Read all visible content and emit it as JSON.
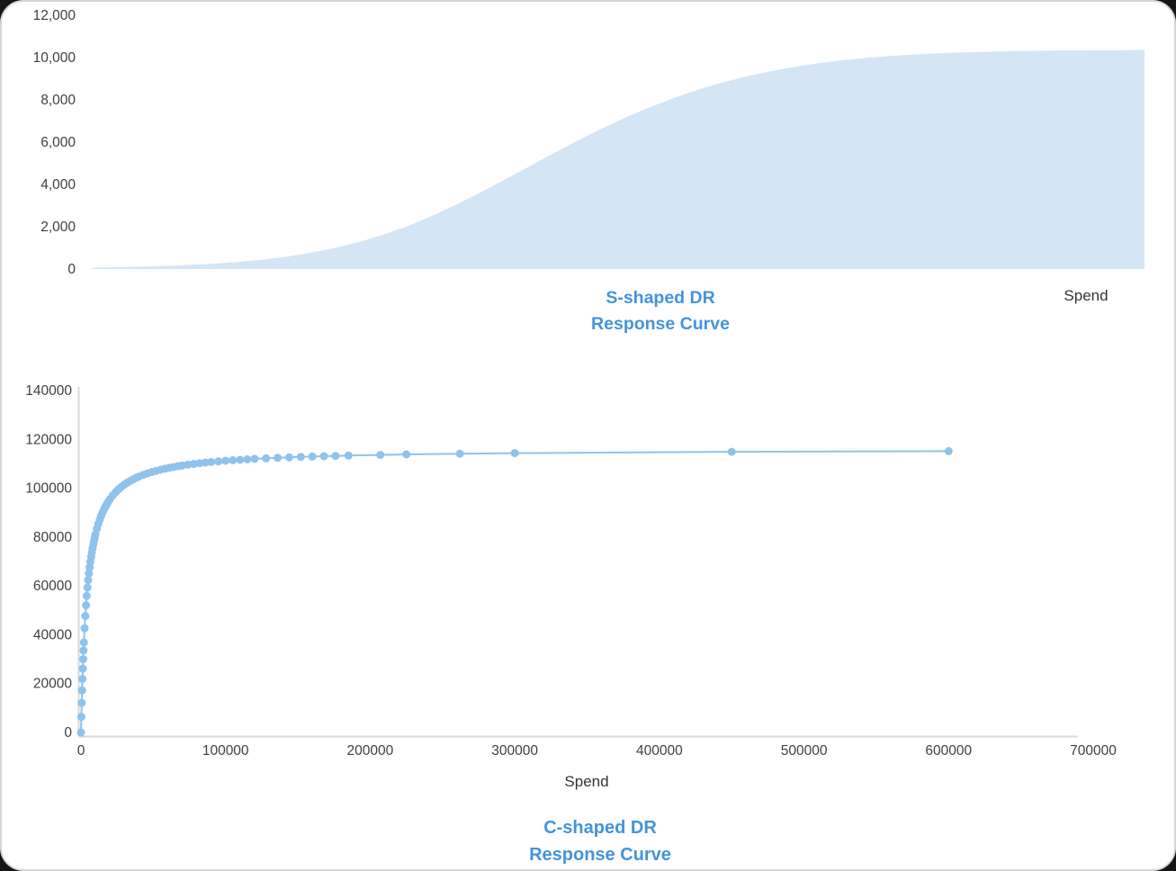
{
  "colors": {
    "area_fill": "#D4E6F5",
    "marker": "#8DC3EC",
    "line": "#8DC3EC",
    "axis": "#D9D9D9",
    "tick_text": "#3F3F3F",
    "title_blue": "#4493DC"
  },
  "chart_data": [
    {
      "id": "s_shaped",
      "type": "area",
      "title_lines": [
        "S-shaped DR",
        "Response Curve"
      ],
      "xlabel": "Spend",
      "ylabel": "",
      "grid": false,
      "legend": "none",
      "xlim": [
        0,
        1
      ],
      "ylim": [
        0,
        12000
      ],
      "x_tick_labels_visible": false,
      "y_tick_values": [
        0,
        2000,
        4000,
        6000,
        8000,
        10000,
        12000
      ],
      "y_tick_labels": [
        "0",
        "2,000",
        "4,000",
        "6,000",
        "8,000",
        "10,000",
        "12,000"
      ],
      "x": [
        0,
        0.04,
        0.08,
        0.12,
        0.16,
        0.2,
        0.24,
        0.28,
        0.32,
        0.36,
        0.4,
        0.44,
        0.48,
        0.52,
        0.56,
        0.6,
        0.64,
        0.68,
        0.72,
        0.76,
        0.8,
        0.84,
        0.88,
        0.92,
        0.96,
        1.0
      ],
      "y": [
        60,
        100,
        160,
        260,
        420,
        680,
        1080,
        1650,
        2420,
        3380,
        4430,
        5520,
        6550,
        7460,
        8230,
        8850,
        9320,
        9670,
        9920,
        10090,
        10200,
        10270,
        10310,
        10335,
        10350,
        10360
      ]
    },
    {
      "id": "c_shaped",
      "type": "scatter",
      "title_lines": [
        "C-shaped DR",
        "Response Curve"
      ],
      "xlabel": "Spend",
      "ylabel": "",
      "grid": false,
      "legend": "none",
      "xlim": [
        0,
        700000
      ],
      "ylim": [
        0,
        140000
      ],
      "x_tick_values": [
        0,
        100000,
        200000,
        300000,
        400000,
        500000,
        600000,
        700000
      ],
      "x_tick_labels": [
        "0",
        "100000",
        "200000",
        "300000",
        "400000",
        "500000",
        "600000",
        "700000"
      ],
      "y_tick_values": [
        0,
        20000,
        40000,
        60000,
        80000,
        100000,
        120000,
        140000
      ],
      "y_tick_labels": [
        "0",
        "20000",
        "40000",
        "60000",
        "80000",
        "100000",
        "120000",
        "140000"
      ],
      "x": [
        0,
        250,
        500,
        750,
        1000,
        1250,
        1500,
        1750,
        2000,
        2500,
        3000,
        3500,
        4000,
        4500,
        5000,
        5500,
        6000,
        6500,
        7000,
        7500,
        8000,
        8500,
        9000,
        9500,
        10000,
        11000,
        12000,
        13000,
        14000,
        15000,
        16000,
        17000,
        18000,
        19000,
        20000,
        22000,
        24000,
        26000,
        28000,
        30000,
        32000,
        34000,
        36000,
        38000,
        40000,
        43000,
        46000,
        49000,
        52000,
        55000,
        58000,
        61000,
        64000,
        67000,
        70000,
        74000,
        78000,
        82000,
        86000,
        90000,
        95000,
        100000,
        105000,
        110000,
        115000,
        120000,
        128000,
        136000,
        144000,
        152000,
        160000,
        168000,
        176000,
        185000,
        207000,
        225000,
        262000,
        300000,
        450000,
        600000
      ],
      "y": [
        0,
        6374,
        12083,
        17228,
        21887,
        26126,
        30000,
        33554,
        36825,
        42647,
        47671,
        52051,
        55904,
        59318,
        62366,
        65102,
        67573,
        69815,
        71858,
        73729,
        75447,
        77031,
        78496,
        79855,
        81119,
        83399,
        85399,
        87168,
        88743,
        90155,
        91429,
        92582,
        93632,
        94592,
        95473,
        97034,
        98375,
        99538,
        100557,
        101458,
        102259,
        102977,
        103623,
        104208,
        104740,
        105455,
        106084,
        106642,
        107140,
        107589,
        107994,
        108361,
        108697,
        109004,
        109287,
        109630,
        109939,
        110220,
        110476,
        110710,
        110977,
        111218,
        111436,
        111636,
        111819,
        111987,
        112230,
        112445,
        112637,
        112809,
        112964,
        113105,
        113234,
        113365,
        113639,
        113825,
        114127,
        114361,
        114902,
        115175
      ]
    }
  ]
}
